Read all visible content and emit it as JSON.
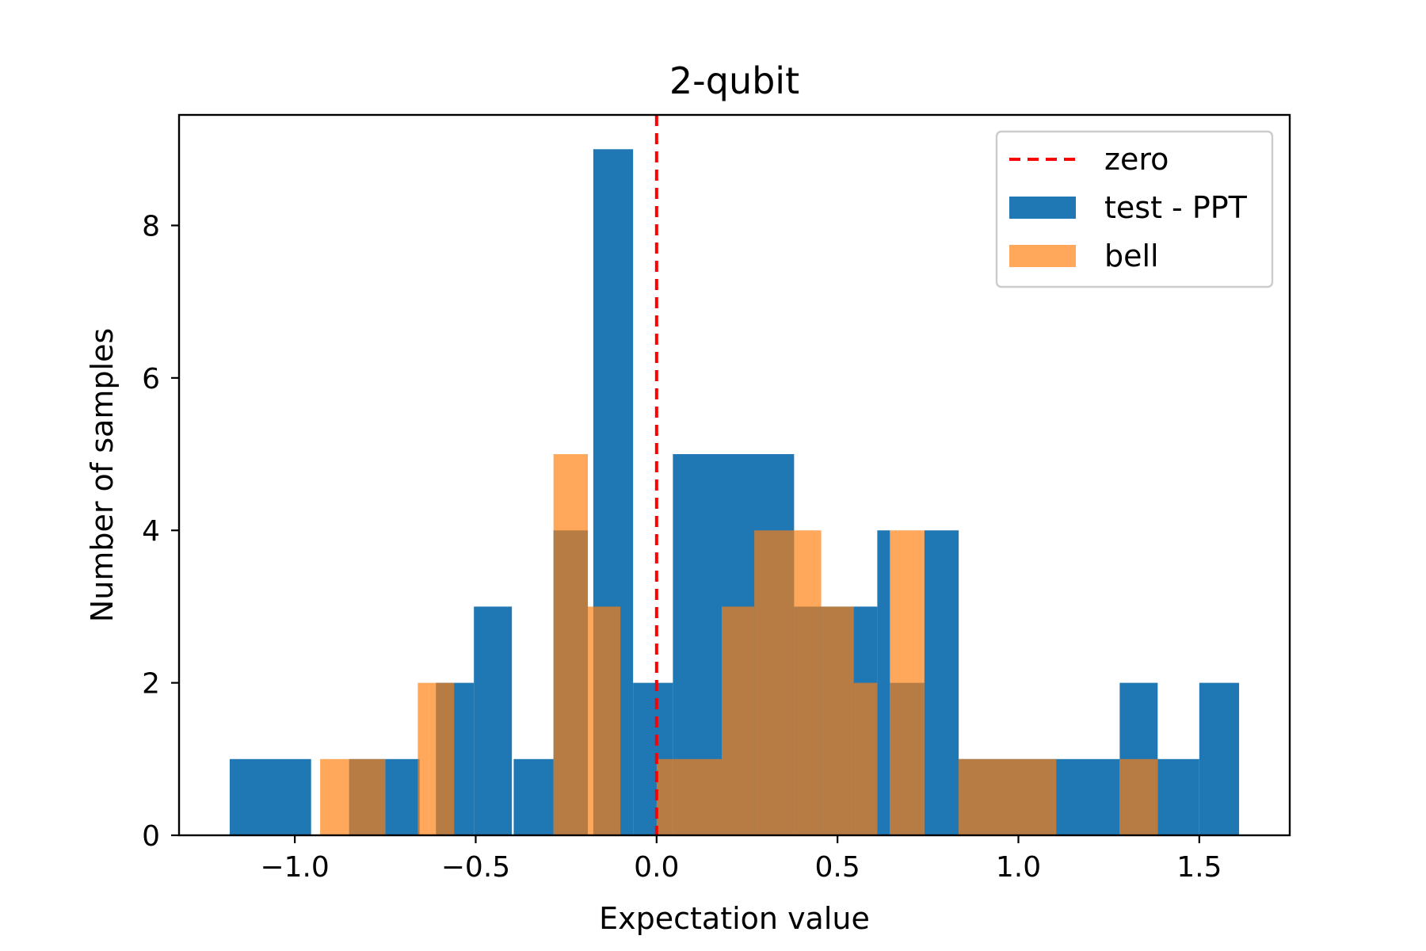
{
  "chart_data": {
    "type": "bar",
    "title": "2-qubit",
    "xlabel": "Expectation value",
    "ylabel": "Number of samples",
    "xlim": [
      -1.32,
      1.75
    ],
    "ylim": [
      0,
      9.45
    ],
    "xticks": [
      -1.0,
      -0.5,
      0.0,
      0.5,
      1.0,
      1.5
    ],
    "xtick_labels": [
      "−1.0",
      "−0.5",
      "0.0",
      "0.5",
      "1.0",
      "1.5"
    ],
    "yticks": [
      0,
      2,
      4,
      6,
      8
    ],
    "ytick_labels": [
      "0",
      "2",
      "4",
      "6",
      "8"
    ],
    "grid": false,
    "legend_position": "top-right",
    "reference_line": {
      "name": "zero",
      "x": 0.0,
      "color": "#ff0000",
      "style": "dashed"
    },
    "series": [
      {
        "name": "test - PPT",
        "color": "#1f77b4",
        "opacity": 1.0,
        "bins": [
          {
            "x0": -1.18,
            "x1": -0.955,
            "count": 1
          },
          {
            "x0": -0.85,
            "x1": -0.75,
            "count": 1
          },
          {
            "x0": -0.75,
            "x1": -0.655,
            "count": 1
          },
          {
            "x0": -0.61,
            "x1": -0.56,
            "count": 2
          },
          {
            "x0": -0.56,
            "x1": -0.505,
            "count": 2
          },
          {
            "x0": -0.505,
            "x1": -0.4,
            "count": 3
          },
          {
            "x0": -0.395,
            "x1": -0.285,
            "count": 1
          },
          {
            "x0": -0.285,
            "x1": -0.19,
            "count": 4
          },
          {
            "x0": -0.175,
            "x1": -0.065,
            "count": 9
          },
          {
            "x0": -0.065,
            "x1": 0.045,
            "count": 2
          },
          {
            "x0": 0.045,
            "x1": 0.38,
            "count": 5
          },
          {
            "x0": 0.38,
            "x1": 0.61,
            "count": 3
          },
          {
            "x0": 0.61,
            "x1": 0.645,
            "count": 4
          },
          {
            "x0": 0.645,
            "x1": 0.74,
            "count": 2
          },
          {
            "x0": 0.74,
            "x1": 0.835,
            "count": 4
          },
          {
            "x0": 0.835,
            "x1": 1.28,
            "count": 1
          },
          {
            "x0": 1.28,
            "x1": 1.385,
            "count": 2
          },
          {
            "x0": 1.385,
            "x1": 1.5,
            "count": 1
          },
          {
            "x0": 1.5,
            "x1": 1.61,
            "count": 2
          }
        ]
      },
      {
        "name": "bell",
        "color": "#ff7f0e",
        "opacity": 0.68,
        "bins": [
          {
            "x0": -0.93,
            "x1": -0.85,
            "count": 1
          },
          {
            "x0": -0.85,
            "x1": -0.75,
            "count": 1
          },
          {
            "x0": -0.66,
            "x1": -0.63,
            "count": 2
          },
          {
            "x0": -0.63,
            "x1": -0.56,
            "count": 2
          },
          {
            "x0": -0.285,
            "x1": -0.19,
            "count": 5
          },
          {
            "x0": -0.19,
            "x1": -0.1,
            "count": 3
          },
          {
            "x0": 0.0,
            "x1": 0.18,
            "count": 1
          },
          {
            "x0": 0.18,
            "x1": 0.27,
            "count": 3
          },
          {
            "x0": 0.27,
            "x1": 0.38,
            "count": 4
          },
          {
            "x0": 0.38,
            "x1": 0.455,
            "count": 4
          },
          {
            "x0": 0.455,
            "x1": 0.545,
            "count": 3
          },
          {
            "x0": 0.545,
            "x1": 0.61,
            "count": 2
          },
          {
            "x0": 0.645,
            "x1": 0.74,
            "count": 4
          },
          {
            "x0": 0.835,
            "x1": 1.105,
            "count": 1
          },
          {
            "x0": 1.28,
            "x1": 1.385,
            "count": 1
          }
        ]
      }
    ]
  }
}
